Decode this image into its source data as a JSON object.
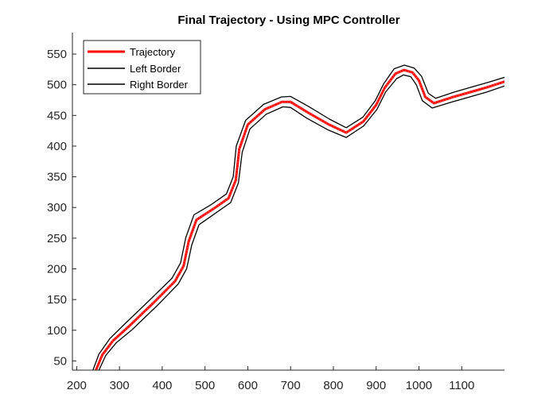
{
  "chart_data": {
    "type": "line",
    "title": "Final Trajectory - Using MPC Controller",
    "xlabel": "",
    "ylabel": "",
    "xlim": [
      190,
      1200
    ],
    "ylim": [
      35,
      585
    ],
    "xticks": [
      200,
      300,
      400,
      500,
      600,
      700,
      800,
      900,
      1000,
      1100
    ],
    "yticks": [
      50,
      100,
      150,
      200,
      250,
      300,
      350,
      400,
      450,
      500,
      550
    ],
    "grid": false,
    "legend": {
      "location": "top-left",
      "entries": [
        "Trajectory",
        "Left Border",
        "Right Border"
      ]
    },
    "series": [
      {
        "name": "Trajectory",
        "color": "#ff0000",
        "style": "thick-dotted",
        "x": [
          245,
          260,
          285,
          320,
          380,
          430,
          450,
          462,
          480,
          520,
          555,
          572,
          580,
          600,
          640,
          680,
          700,
          740,
          790,
          830,
          870,
          900,
          920,
          945,
          965,
          985,
          1000,
          1015,
          1035,
          1080,
          1120,
          1160,
          1200
        ],
        "y": [
          35,
          60,
          83,
          105,
          145,
          180,
          205,
          245,
          280,
          298,
          315,
          345,
          395,
          435,
          460,
          472,
          472,
          455,
          435,
          422,
          440,
          467,
          495,
          518,
          524,
          520,
          507,
          480,
          470,
          480,
          488,
          496,
          505
        ]
      },
      {
        "name": "Left Border",
        "color": "#000000",
        "style": "solid",
        "x": [
          238,
          252,
          277,
          312,
          372,
          423,
          443,
          455,
          474,
          515,
          550,
          566,
          573,
          595,
          637,
          678,
          700,
          741,
          791,
          830,
          869,
          898,
          918,
          942,
          966,
          989,
          1006,
          1022,
          1039,
          1082,
          1122,
          1162,
          1200
        ],
        "y": [
          35,
          61,
          86,
          110,
          150,
          185,
          210,
          251,
          288,
          305,
          322,
          350,
          400,
          442,
          468,
          480,
          481,
          465,
          444,
          430,
          447,
          474,
          502,
          526,
          532,
          527,
          514,
          486,
          478,
          488,
          496,
          504,
          512
        ]
      },
      {
        "name": "Right Border",
        "color": "#000000",
        "style": "solid",
        "x": [
          252,
          268,
          293,
          328,
          388,
          437,
          457,
          469,
          486,
          525,
          560,
          578,
          587,
          605,
          643,
          682,
          700,
          739,
          789,
          830,
          871,
          902,
          922,
          948,
          964,
          981,
          994,
          1008,
          1031,
          1078,
          1118,
          1158,
          1200
        ],
        "y": [
          35,
          59,
          80,
          100,
          140,
          175,
          200,
          239,
          272,
          291,
          308,
          340,
          390,
          428,
          452,
          464,
          463,
          445,
          426,
          414,
          433,
          460,
          488,
          510,
          516,
          513,
          500,
          474,
          462,
          472,
          480,
          488,
          498
        ]
      }
    ]
  }
}
